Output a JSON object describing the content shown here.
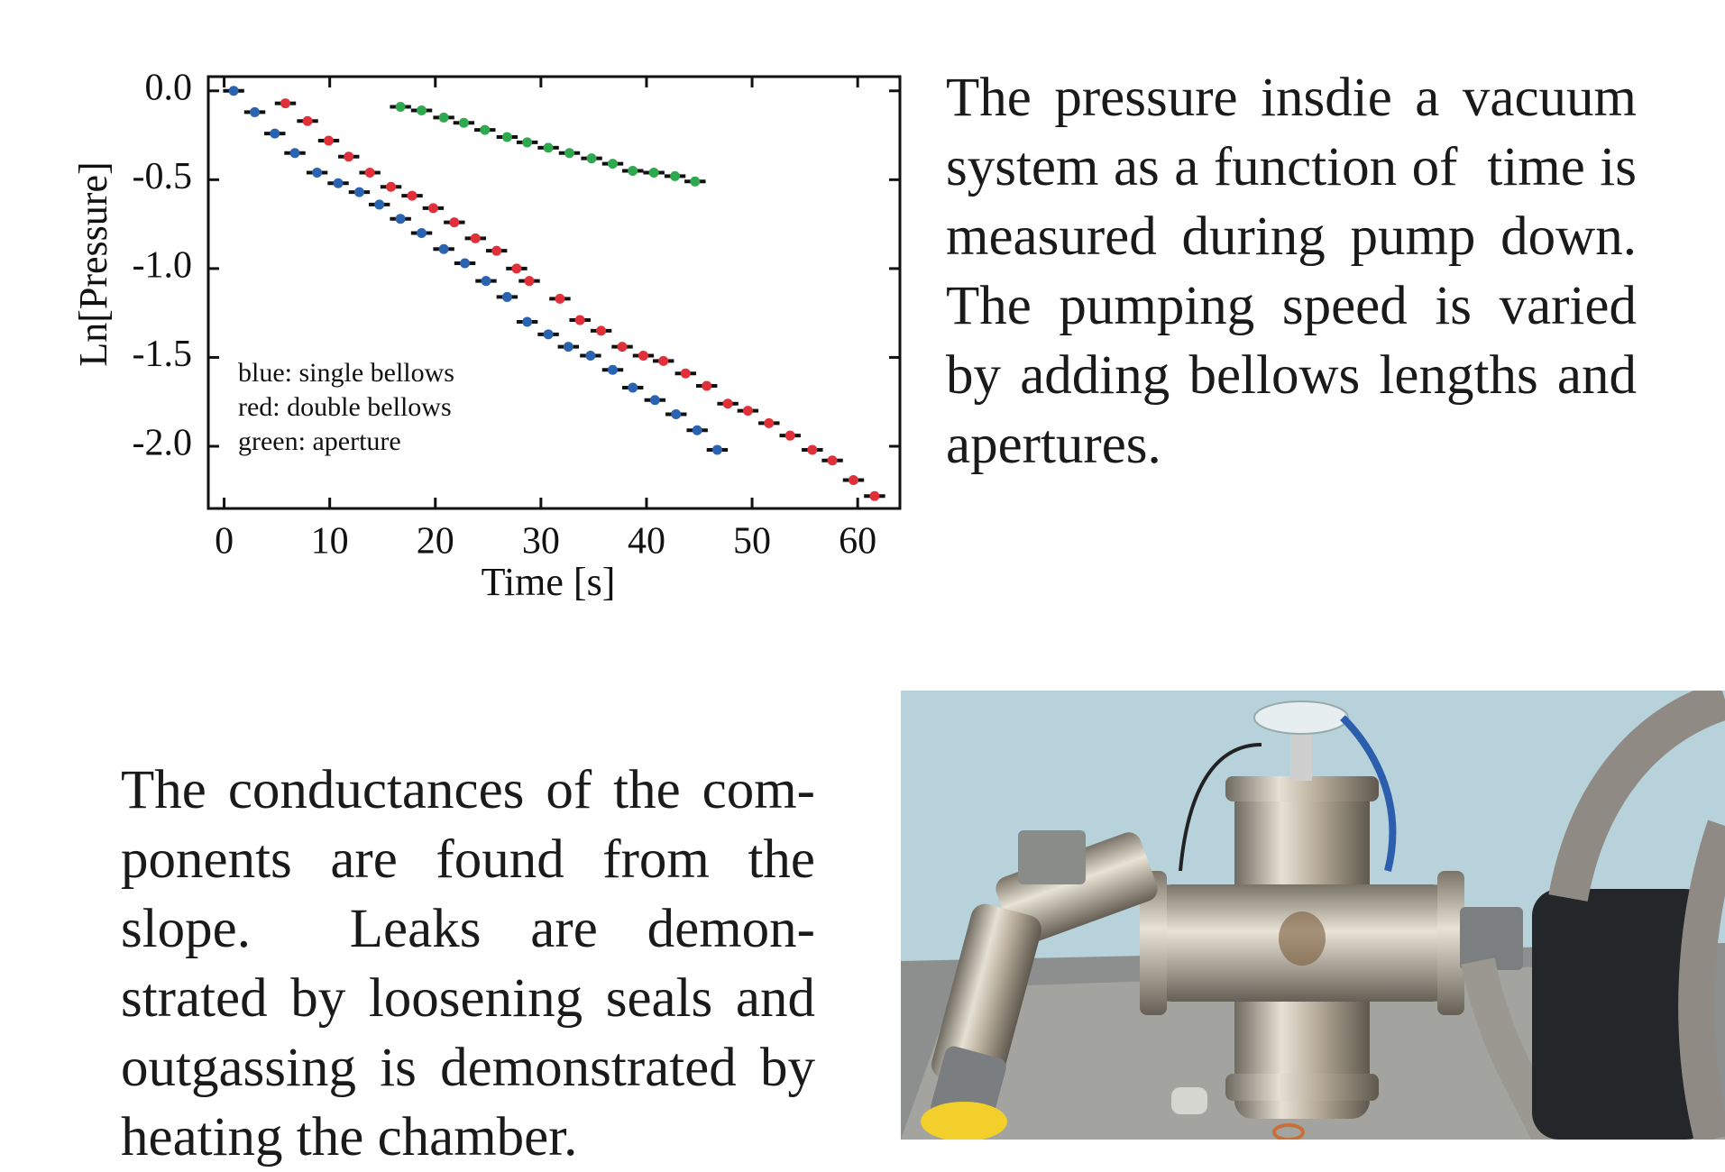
{
  "chart_data": {
    "type": "scatter",
    "xlabel": "Time [s]",
    "ylabel": "Ln[Pressure]",
    "xlim": [
      -1.5,
      64
    ],
    "ylim": [
      -2.35,
      0.08
    ],
    "xticks": [
      0,
      10,
      20,
      30,
      40,
      50,
      60
    ],
    "yticks": [
      {
        "value": 0,
        "label": "0.0"
      },
      -0.5,
      {
        "value": -1,
        "label": "-1.0"
      },
      -1.5,
      {
        "value": -2,
        "label": "-2.0"
      }
    ],
    "annotations": [
      "blue: single bellows",
      "red: double bellows",
      "green: aperture"
    ],
    "xerr": 1,
    "series": [
      {
        "color": "#2a63b0",
        "x": [
          0.9,
          2.9,
          4.8,
          6.7,
          8.8,
          10.8,
          12.8,
          14.7,
          16.7,
          18.7,
          20.8,
          22.8,
          24.8,
          26.8,
          28.7,
          30.7,
          32.6,
          34.7,
          36.8,
          38.7,
          40.8,
          42.8,
          44.8,
          46.7
        ],
        "values": [
          0,
          -0.12,
          -0.24,
          -0.35,
          -0.46,
          -0.52,
          -0.57,
          -0.64,
          -0.72,
          -0.8,
          -0.89,
          -0.97,
          -1.07,
          -1.16,
          -1.3,
          -1.37,
          -1.44,
          -1.49,
          -1.57,
          -1.67,
          -1.74,
          -1.82,
          -1.91,
          -2.02
        ]
      },
      {
        "color": "#e0303a",
        "x": [
          5.8,
          7.9,
          9.9,
          11.8,
          13.8,
          15.8,
          17.8,
          19.8,
          21.8,
          23.8,
          25.8,
          27.7,
          28.9,
          31.8,
          33.7,
          35.7,
          37.7,
          39.7,
          41.6,
          43.7,
          45.7,
          47.7,
          49.6,
          51.6,
          53.6,
          55.7,
          57.6,
          59.6,
          61.6
        ],
        "values": [
          -0.07,
          -0.17,
          -0.28,
          -0.37,
          -0.46,
          -0.54,
          -0.59,
          -0.66,
          -0.74,
          -0.83,
          -0.9,
          -1,
          -1.07,
          -1.17,
          -1.29,
          -1.35,
          -1.44,
          -1.49,
          -1.52,
          -1.59,
          -1.66,
          -1.76,
          -1.8,
          -1.87,
          -1.94,
          -2.02,
          -2.08,
          -2.19,
          -2.28
        ]
      },
      {
        "color": "#2fa84f",
        "x": [
          16.7,
          18.7,
          20.8,
          22.7,
          24.7,
          26.8,
          28.7,
          30.7,
          32.7,
          34.8,
          36.8,
          38.7,
          40.7,
          42.7,
          44.6
        ],
        "values": [
          -0.09,
          -0.11,
          -0.15,
          -0.18,
          -0.22,
          -0.26,
          -0.29,
          -0.32,
          -0.35,
          -0.38,
          -0.41,
          -0.45,
          -0.46,
          -0.48,
          -0.51
        ]
      }
    ]
  },
  "paragraphs": [
    "The pressure insdie a vacuum system as a function of  time is measured during pump down.  The pumping speed is varied by adding bellows lengths and apertures.",
    "The conductances of the com-ponents are found from the slope.  Leaks are demon-strated by loosening seals and outgassing is demonstrated by heating the chamber."
  ]
}
